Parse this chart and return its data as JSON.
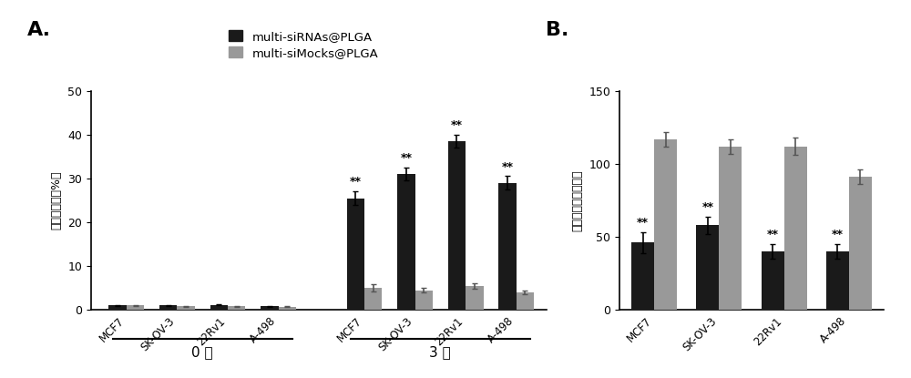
{
  "panel_A": {
    "title": "A.",
    "ylabel": "细胞抑制率（%）",
    "ylim": [
      0,
      50
    ],
    "yticks": [
      0,
      10,
      20,
      30,
      40,
      50
    ],
    "group_labels_day0": [
      "MCF7",
      "SK-OV-3",
      "22Rv1",
      "A-498"
    ],
    "group_labels_day3": [
      "MCF7",
      "SK-OV-3",
      "22Rv1",
      "A-498"
    ],
    "day0_label": "0 天",
    "day3_label": "3 天",
    "black_values_day0": [
      1.0,
      1.0,
      1.2,
      0.8
    ],
    "gray_values_day0": [
      1.0,
      0.8,
      0.8,
      0.7
    ],
    "black_errors_day0": [
      0.2,
      0.2,
      0.2,
      0.15
    ],
    "gray_errors_day0": [
      0.15,
      0.15,
      0.15,
      0.1
    ],
    "black_values_day3": [
      25.5,
      31.0,
      38.5,
      29.0
    ],
    "gray_values_day3": [
      5.0,
      4.5,
      5.5,
      4.0
    ],
    "black_errors_day3": [
      1.5,
      1.5,
      1.5,
      1.5
    ],
    "gray_errors_day3": [
      0.8,
      0.5,
      0.6,
      0.5
    ],
    "legend_black": "multi-siRNAs@PLGA",
    "legend_gray": "multi-siMocks@PLGA",
    "black_color": "#1a1a1a",
    "gray_color": "#999999",
    "bar_width": 0.35
  },
  "panel_B": {
    "title": "B.",
    "ylabel": "每个孔的细胞侵袭数",
    "ylim": [
      0,
      150
    ],
    "yticks": [
      0,
      50,
      100,
      150
    ],
    "groups": [
      "MCF7",
      "SK-OV-3",
      "22Rv1",
      "A-498"
    ],
    "black_values": [
      46,
      58,
      40,
      40
    ],
    "gray_values": [
      117,
      112,
      112,
      91
    ],
    "black_errors": [
      7,
      6,
      5,
      5
    ],
    "gray_errors": [
      5,
      5,
      6,
      5
    ],
    "black_color": "#1a1a1a",
    "gray_color": "#999999",
    "bar_width": 0.35
  }
}
